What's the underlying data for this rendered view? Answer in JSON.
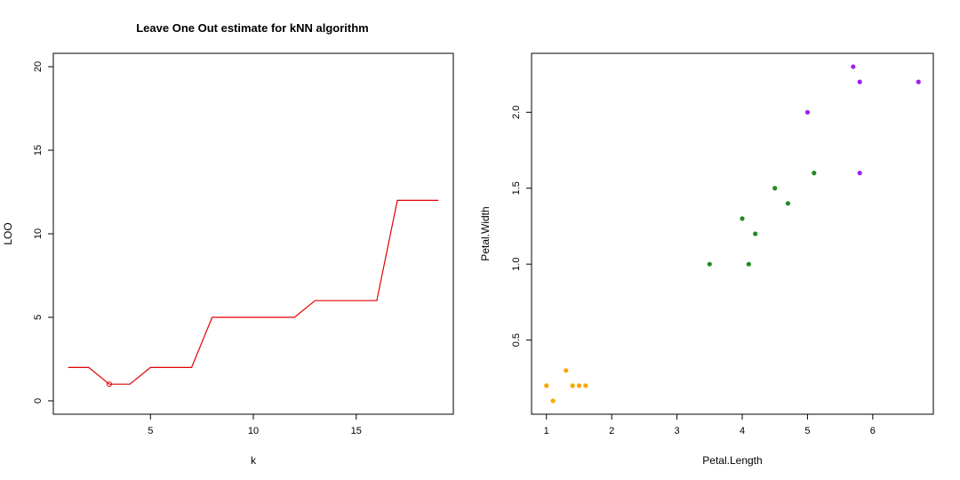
{
  "chart_data": [
    {
      "type": "line",
      "title": "Leave One Out estimate for kNN algorithm",
      "xlabel": "k",
      "ylabel": "LOO",
      "xlim": [
        1,
        19
      ],
      "ylim": [
        0,
        20
      ],
      "xticks": [
        5,
        10,
        15
      ],
      "yticks": [
        0,
        5,
        10,
        15,
        20
      ],
      "grid": false,
      "line_color": "#e00000",
      "x": [
        1,
        2,
        3,
        4,
        5,
        6,
        7,
        8,
        9,
        10,
        11,
        12,
        13,
        14,
        15,
        16,
        17,
        18,
        19
      ],
      "y": [
        2,
        2,
        1,
        1,
        2,
        2,
        2,
        5,
        5,
        5,
        5,
        5,
        6,
        6,
        6,
        6,
        12,
        12,
        12
      ],
      "highlight_point": {
        "x": 3,
        "y": 1
      }
    },
    {
      "type": "scatter",
      "title": "",
      "xlabel": "Petal.Length",
      "ylabel": "Petal.Width",
      "xlim": [
        1,
        6.7
      ],
      "ylim": [
        0.1,
        2.3
      ],
      "xticks": [
        1,
        2,
        3,
        4,
        5,
        6
      ],
      "yticks": [
        0.5,
        1.0,
        1.5,
        2.0
      ],
      "ytick_labels": [
        "0.5",
        "1.0",
        "1.5",
        "2.0"
      ],
      "grid": false,
      "series": [
        {
          "color": "#ffa500",
          "points": [
            [
              1.0,
              0.2
            ],
            [
              1.1,
              0.1
            ],
            [
              1.3,
              0.3
            ],
            [
              1.4,
              0.2
            ],
            [
              1.5,
              0.2
            ],
            [
              1.6,
              0.2
            ]
          ]
        },
        {
          "color": "#228b22",
          "points": [
            [
              3.5,
              1.0
            ],
            [
              4.0,
              1.3
            ],
            [
              4.1,
              1.0
            ],
            [
              4.2,
              1.2
            ],
            [
              4.5,
              1.5
            ],
            [
              4.7,
              1.4
            ],
            [
              5.1,
              1.6
            ]
          ]
        },
        {
          "color": "#a020f0",
          "points": [
            [
              5.0,
              2.0
            ],
            [
              5.7,
              2.3
            ],
            [
              5.8,
              2.2
            ],
            [
              5.8,
              1.6
            ],
            [
              6.7,
              2.2
            ]
          ]
        }
      ]
    }
  ]
}
